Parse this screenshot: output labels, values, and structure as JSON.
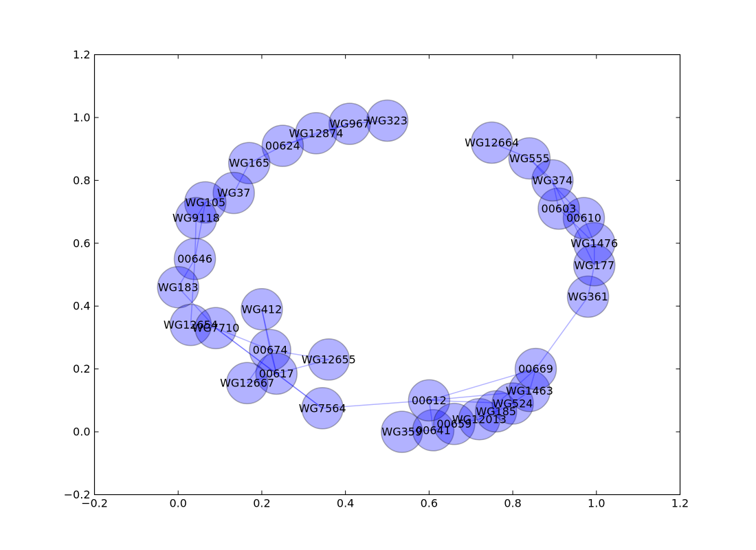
{
  "chart_data": {
    "type": "scatter",
    "title": "",
    "xlabel": "",
    "ylabel": "",
    "xlim": [
      -0.2,
      1.2
    ],
    "ylim": [
      -0.2,
      1.2
    ],
    "grid": false,
    "x_ticks": [
      "−0.2",
      "0.0",
      "0.2",
      "0.4",
      "0.6",
      "0.8",
      "1.0",
      "1.2"
    ],
    "y_ticks": [
      "−0.2",
      "0.0",
      "0.2",
      "0.4",
      "0.6",
      "0.8",
      "1.0",
      "1.2"
    ],
    "x_tick_values": [
      -0.2,
      0.0,
      0.2,
      0.4,
      0.6,
      0.8,
      1.0,
      1.2
    ],
    "y_tick_values": [
      -0.2,
      0.0,
      0.2,
      0.4,
      0.6,
      0.8,
      1.0,
      1.2
    ],
    "node_color": "#0000ff",
    "nodes": [
      {
        "label": "WG323",
        "x": 0.5,
        "y": 0.99
      },
      {
        "label": "WG967",
        "x": 0.41,
        "y": 0.98
      },
      {
        "label": "WG12874",
        "x": 0.33,
        "y": 0.95
      },
      {
        "label": "00624",
        "x": 0.25,
        "y": 0.91
      },
      {
        "label": "WG165",
        "x": 0.17,
        "y": 0.855
      },
      {
        "label": "WG37",
        "x": 0.133,
        "y": 0.76
      },
      {
        "label": "WG105",
        "x": 0.065,
        "y": 0.73
      },
      {
        "label": "WG9118",
        "x": 0.043,
        "y": 0.68
      },
      {
        "label": "00646",
        "x": 0.04,
        "y": 0.55
      },
      {
        "label": "WG183",
        "x": 0.0,
        "y": 0.46
      },
      {
        "label": "WG12654",
        "x": 0.03,
        "y": 0.34
      },
      {
        "label": "WG7710",
        "x": 0.09,
        "y": 0.33
      },
      {
        "label": "WG412",
        "x": 0.2,
        "y": 0.39
      },
      {
        "label": "00674",
        "x": 0.22,
        "y": 0.26
      },
      {
        "label": "00617",
        "x": 0.235,
        "y": 0.185
      },
      {
        "label": "WG12667",
        "x": 0.165,
        "y": 0.155
      },
      {
        "label": "WG12655",
        "x": 0.36,
        "y": 0.23
      },
      {
        "label": "WG7564",
        "x": 0.345,
        "y": 0.075
      },
      {
        "label": "WG359",
        "x": 0.535,
        "y": 0.0
      },
      {
        "label": "00641",
        "x": 0.61,
        "y": 0.005
      },
      {
        "label": "00612",
        "x": 0.6,
        "y": 0.1
      },
      {
        "label": "00659",
        "x": 0.66,
        "y": 0.025
      },
      {
        "label": "WG12013",
        "x": 0.72,
        "y": 0.04
      },
      {
        "label": "WG185",
        "x": 0.76,
        "y": 0.065
      },
      {
        "label": "WG524",
        "x": 0.8,
        "y": 0.09
      },
      {
        "label": "WG1463",
        "x": 0.84,
        "y": 0.13
      },
      {
        "label": "00669",
        "x": 0.855,
        "y": 0.2
      },
      {
        "label": "WG361",
        "x": 0.98,
        "y": 0.43
      },
      {
        "label": "WG177",
        "x": 0.995,
        "y": 0.53
      },
      {
        "label": "WG1476",
        "x": 0.995,
        "y": 0.6
      },
      {
        "label": "00610",
        "x": 0.97,
        "y": 0.68
      },
      {
        "label": "00603",
        "x": 0.91,
        "y": 0.71
      },
      {
        "label": "WG374",
        "x": 0.895,
        "y": 0.8
      },
      {
        "label": "WG555",
        "x": 0.84,
        "y": 0.87
      },
      {
        "label": "WG12664",
        "x": 0.75,
        "y": 0.92
      }
    ],
    "edges": [
      [
        "WG323",
        "WG967"
      ],
      [
        "WG967",
        "WG12874"
      ],
      [
        "WG12874",
        "00624"
      ],
      [
        "WG967",
        "00624"
      ],
      [
        "00624",
        "WG165"
      ],
      [
        "WG165",
        "WG37"
      ],
      [
        "WG37",
        "WG105"
      ],
      [
        "WG105",
        "WG9118"
      ],
      [
        "WG9118",
        "00646"
      ],
      [
        "WG105",
        "00646"
      ],
      [
        "00646",
        "WG183"
      ],
      [
        "00646",
        "WG12654"
      ],
      [
        "WG183",
        "WG7710"
      ],
      [
        "WG12654",
        "WG7710"
      ],
      [
        "WG7710",
        "00674"
      ],
      [
        "WG7710",
        "00617"
      ],
      [
        "WG7710",
        "WG7564"
      ],
      [
        "WG412",
        "00674"
      ],
      [
        "WG412",
        "00617"
      ],
      [
        "00674",
        "00617"
      ],
      [
        "00674",
        "WG12655"
      ],
      [
        "00617",
        "WG12655"
      ],
      [
        "00617",
        "WG12667"
      ],
      [
        "00674",
        "WG12667"
      ],
      [
        "WG7564",
        "00612"
      ],
      [
        "WG7564",
        "00617"
      ],
      [
        "00612",
        "WG1463"
      ],
      [
        "00612",
        "WG524"
      ],
      [
        "00612",
        "00669"
      ],
      [
        "00641",
        "WG359"
      ],
      [
        "00641",
        "00659"
      ],
      [
        "00641",
        "00612"
      ],
      [
        "00659",
        "WG12013"
      ],
      [
        "WG12013",
        "WG185"
      ],
      [
        "WG185",
        "WG524"
      ],
      [
        "WG524",
        "WG1463"
      ],
      [
        "WG1463",
        "00669"
      ],
      [
        "WG12013",
        "00669"
      ],
      [
        "00669",
        "WG361"
      ],
      [
        "WG361",
        "WG177"
      ],
      [
        "WG177",
        "WG1476"
      ],
      [
        "WG1476",
        "00610"
      ],
      [
        "00610",
        "00603"
      ],
      [
        "00603",
        "WG374"
      ],
      [
        "WG374",
        "WG555"
      ],
      [
        "WG555",
        "WG12664"
      ],
      [
        "WG555",
        "00610"
      ],
      [
        "WG374",
        "WG177"
      ],
      [
        "00603",
        "WG1476"
      ]
    ]
  }
}
